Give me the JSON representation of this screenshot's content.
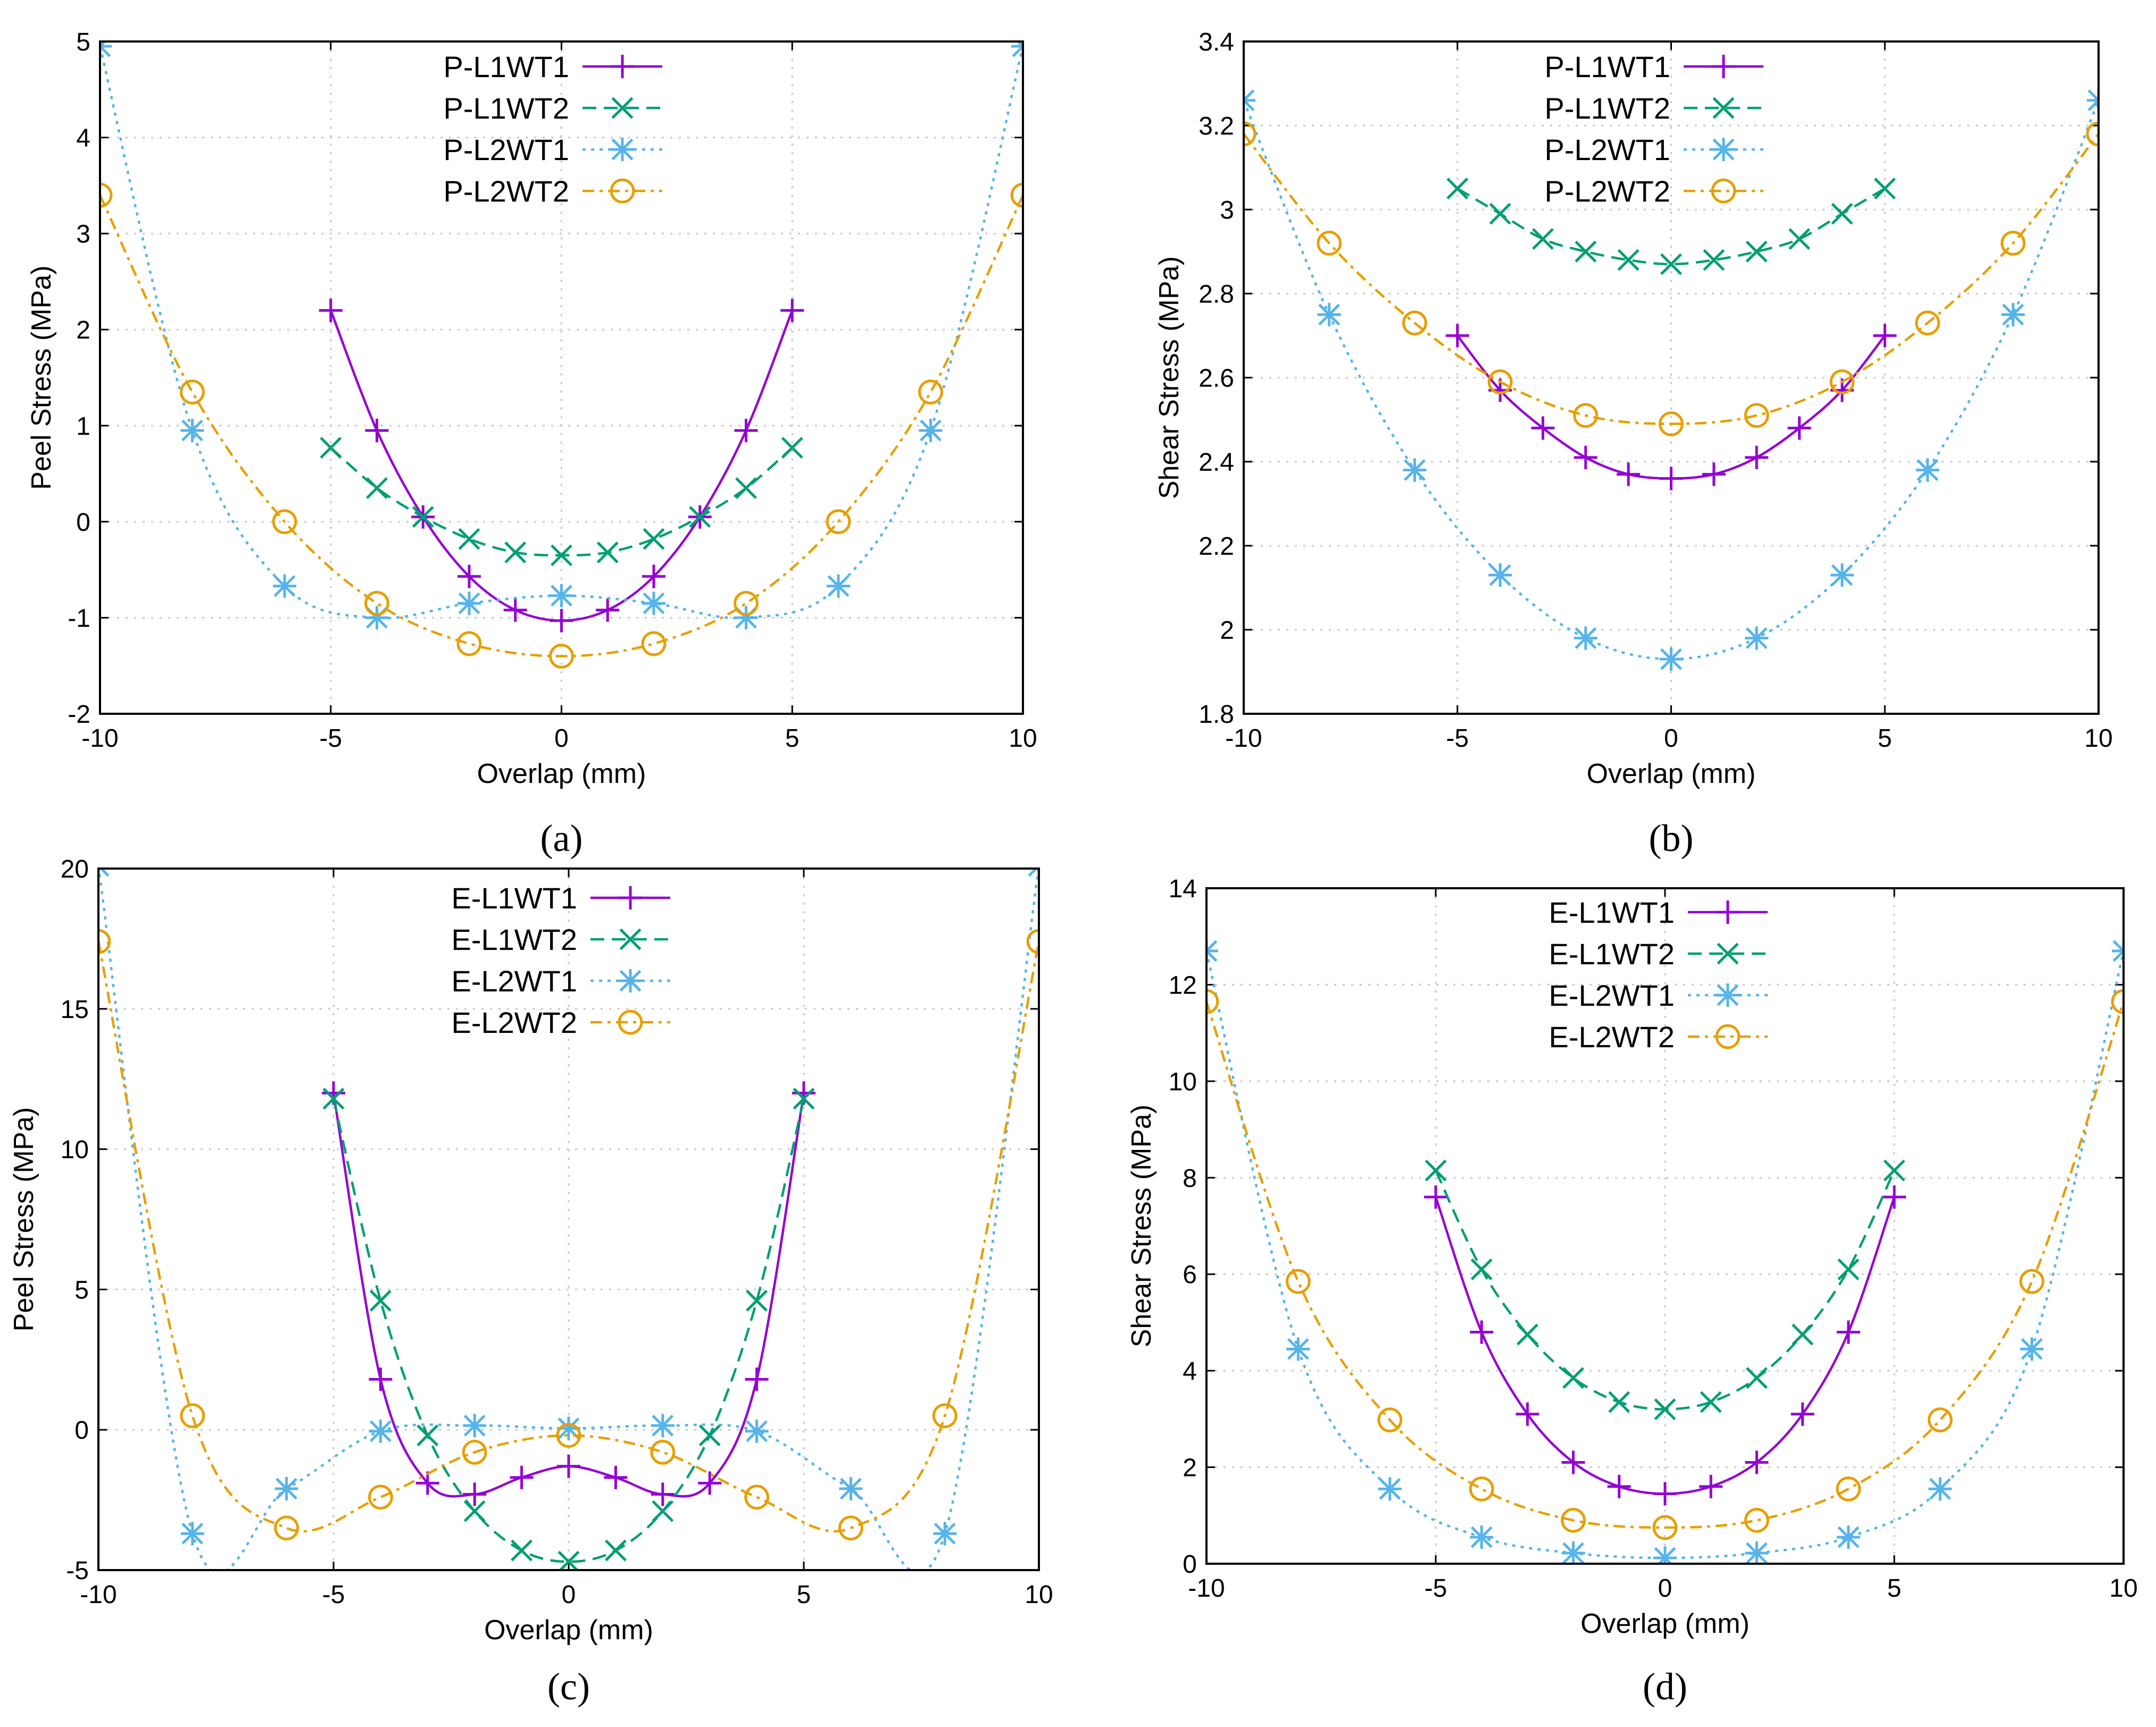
{
  "colors": {
    "L1WT1": "#9400d3",
    "L1WT2": "#009e73",
    "L2WT1": "#56b4e9",
    "L2WT2": "#e69f00"
  },
  "chart_data": [
    {
      "type": "line",
      "panel_label": "(a)",
      "panel_letter": "a",
      "xlabel": "Overlap (mm)",
      "ylabel": "Peel Stress (MPa)",
      "xlim": [
        -10,
        10
      ],
      "ylim": [
        -2,
        5
      ],
      "xticks": [
        -10,
        -5,
        0,
        5,
        10
      ],
      "yticks": [
        -2,
        -1,
        0,
        1,
        2,
        3,
        4,
        5
      ],
      "legend_position": "top-center",
      "series": [
        {
          "name": "P-L1WT1",
          "key": "L1WT1",
          "marker": "plus",
          "dash": "solid",
          "x": [
            -5,
            -4,
            -3,
            -2,
            -1,
            0,
            1,
            2,
            3,
            4,
            5
          ],
          "y": [
            2.2,
            0.95,
            0.05,
            -0.57,
            -0.92,
            -1.03,
            -0.92,
            -0.57,
            0.05,
            0.95,
            2.2
          ]
        },
        {
          "name": "P-L1WT2",
          "key": "L1WT2",
          "marker": "x",
          "dash": "dashed",
          "x": [
            -5,
            -4,
            -3,
            -2,
            -1,
            0,
            1,
            2,
            3,
            4,
            5
          ],
          "y": [
            0.77,
            0.35,
            0.05,
            -0.18,
            -0.32,
            -0.35,
            -0.32,
            -0.18,
            0.05,
            0.35,
            0.77
          ]
        },
        {
          "name": "P-L2WT1",
          "key": "L2WT1",
          "marker": "star",
          "dash": "dotted",
          "x": [
            -10,
            -8,
            -6,
            -4,
            -2,
            0,
            2,
            4,
            6,
            8,
            10
          ],
          "y": [
            4.95,
            0.95,
            -0.67,
            -1.0,
            -0.85,
            -0.77,
            -0.85,
            -1.0,
            -0.67,
            0.95,
            4.95
          ]
        },
        {
          "name": "P-L2WT2",
          "key": "L2WT2",
          "marker": "circle",
          "dash": "dashdot",
          "x": [
            -10,
            -8,
            -6,
            -4,
            -2,
            0,
            2,
            4,
            6,
            8,
            10
          ],
          "y": [
            3.4,
            1.35,
            0.0,
            -0.85,
            -1.27,
            -1.4,
            -1.27,
            -0.85,
            0.0,
            1.35,
            3.4
          ]
        }
      ]
    },
    {
      "type": "line",
      "panel_label": "(b)",
      "panel_letter": "b",
      "xlabel": "Overlap (mm)",
      "ylabel": "Shear Stress (MPa)",
      "xlim": [
        -10,
        10
      ],
      "ylim": [
        1.8,
        3.4
      ],
      "xticks": [
        -10,
        -5,
        0,
        5,
        10
      ],
      "yticks": [
        1.8,
        2,
        2.2,
        2.4,
        2.6,
        2.8,
        3,
        3.2,
        3.4
      ],
      "legend_position": "top-center",
      "series": [
        {
          "name": "P-L1WT1",
          "key": "L1WT1",
          "marker": "plus",
          "dash": "solid",
          "x": [
            -5,
            -4,
            -3,
            -2,
            -1,
            0,
            1,
            2,
            3,
            4,
            5
          ],
          "y": [
            2.7,
            2.57,
            2.48,
            2.41,
            2.37,
            2.36,
            2.37,
            2.41,
            2.48,
            2.57,
            2.7
          ]
        },
        {
          "name": "P-L1WT2",
          "key": "L1WT2",
          "marker": "x",
          "dash": "dashed",
          "x": [
            -5,
            -4,
            -3,
            -2,
            -1,
            0,
            1,
            2,
            3,
            4,
            5
          ],
          "y": [
            3.05,
            2.99,
            2.93,
            2.9,
            2.88,
            2.87,
            2.88,
            2.9,
            2.93,
            2.99,
            3.05
          ]
        },
        {
          "name": "P-L2WT1",
          "key": "L2WT1",
          "marker": "star",
          "dash": "dotted",
          "x": [
            -10,
            -8,
            -6,
            -4,
            -2,
            0,
            2,
            4,
            6,
            8,
            10
          ],
          "y": [
            3.26,
            2.75,
            2.38,
            2.13,
            1.98,
            1.93,
            1.98,
            2.13,
            2.38,
            2.75,
            3.26
          ]
        },
        {
          "name": "P-L2WT2",
          "key": "L2WT2",
          "marker": "circle",
          "dash": "dashdot",
          "x": [
            -10,
            -8,
            -6,
            -4,
            -2,
            0,
            2,
            4,
            6,
            8,
            10
          ],
          "y": [
            3.18,
            2.92,
            2.73,
            2.59,
            2.51,
            2.49,
            2.51,
            2.59,
            2.73,
            2.92,
            3.18
          ]
        }
      ]
    },
    {
      "type": "line",
      "panel_label": "(c)",
      "panel_letter": "c",
      "xlabel": "Overlap (mm)",
      "ylabel": "Peel Stress (MPa)",
      "xlim": [
        -10,
        10
      ],
      "ylim": [
        -5,
        20
      ],
      "xticks": [
        -10,
        -5,
        0,
        5,
        10
      ],
      "yticks": [
        -5,
        0,
        5,
        10,
        15,
        20
      ],
      "legend_position": "top-center",
      "series": [
        {
          "name": "E-L1WT1",
          "key": "L1WT1",
          "marker": "plus",
          "dash": "solid",
          "x": [
            -5,
            -4,
            -3,
            -2,
            -1,
            0,
            1,
            2,
            3,
            4,
            5
          ],
          "y": [
            12.0,
            1.8,
            -1.9,
            -2.3,
            -1.7,
            -1.3,
            -1.7,
            -2.3,
            -1.9,
            1.8,
            12.0
          ]
        },
        {
          "name": "E-L1WT2",
          "key": "L1WT2",
          "marker": "x",
          "dash": "dashed",
          "x": [
            -5,
            -4,
            -3,
            -2,
            -1,
            0,
            1,
            2,
            3,
            4,
            5
          ],
          "y": [
            11.8,
            4.6,
            -0.2,
            -2.9,
            -4.3,
            -4.7,
            -4.3,
            -2.9,
            -0.2,
            4.6,
            11.8
          ]
        },
        {
          "name": "E-L2WT1",
          "key": "L2WT1",
          "marker": "star",
          "dash": "dotted",
          "x": [
            -10,
            -8,
            -6,
            -4,
            -2,
            0,
            2,
            4,
            6,
            8,
            10
          ],
          "y": [
            20.1,
            -3.7,
            -2.1,
            -0.05,
            0.15,
            0.05,
            0.15,
            -0.05,
            -2.1,
            -3.7,
            20.1
          ]
        },
        {
          "name": "E-L2WT2",
          "key": "L2WT2",
          "marker": "circle",
          "dash": "dashdot",
          "x": [
            -10,
            -8,
            -6,
            -4,
            -2,
            0,
            2,
            4,
            6,
            8,
            10
          ],
          "y": [
            17.4,
            0.5,
            -3.5,
            -2.4,
            -0.8,
            -0.2,
            -0.8,
            -2.4,
            -3.5,
            0.5,
            17.4
          ]
        }
      ]
    },
    {
      "type": "line",
      "panel_label": "(d)",
      "panel_letter": "d",
      "xlabel": "Overlap (mm)",
      "ylabel": "Shear Stress (MPa)",
      "xlim": [
        -10,
        10
      ],
      "ylim": [
        0,
        14
      ],
      "xticks": [
        -10,
        -5,
        0,
        5,
        10
      ],
      "yticks": [
        0,
        2,
        4,
        6,
        8,
        10,
        12,
        14
      ],
      "legend_position": "top-center",
      "series": [
        {
          "name": "E-L1WT1",
          "key": "L1WT1",
          "marker": "plus",
          "dash": "solid",
          "x": [
            -5,
            -4,
            -3,
            -2,
            -1,
            0,
            1,
            2,
            3,
            4,
            5
          ],
          "y": [
            7.6,
            4.8,
            3.1,
            2.1,
            1.6,
            1.45,
            1.6,
            2.1,
            3.1,
            4.8,
            7.6
          ]
        },
        {
          "name": "E-L1WT2",
          "key": "L1WT2",
          "marker": "x",
          "dash": "dashed",
          "x": [
            -5,
            -4,
            -3,
            -2,
            -1,
            0,
            1,
            2,
            3,
            4,
            5
          ],
          "y": [
            8.15,
            6.1,
            4.75,
            3.85,
            3.35,
            3.2,
            3.35,
            3.85,
            4.75,
            6.1,
            8.15
          ]
        },
        {
          "name": "E-L2WT1",
          "key": "L2WT1",
          "marker": "star",
          "dash": "dotted",
          "x": [
            -10,
            -8,
            -6,
            -4,
            -2,
            0,
            2,
            4,
            6,
            8,
            10
          ],
          "y": [
            12.7,
            4.45,
            1.55,
            0.55,
            0.22,
            0.12,
            0.22,
            0.55,
            1.55,
            4.45,
            12.7
          ]
        },
        {
          "name": "E-L2WT2",
          "key": "L2WT2",
          "marker": "circle",
          "dash": "dashdot",
          "x": [
            -10,
            -8,
            -6,
            -4,
            -2,
            0,
            2,
            4,
            6,
            8,
            10
          ],
          "y": [
            11.65,
            5.85,
            2.98,
            1.55,
            0.9,
            0.75,
            0.9,
            1.55,
            2.98,
            5.85,
            11.65
          ]
        }
      ]
    }
  ]
}
